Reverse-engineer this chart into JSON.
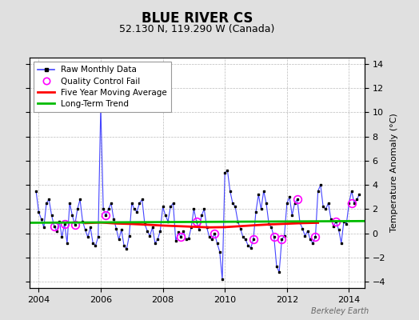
{
  "title": "BLUE RIVER CS",
  "subtitle": "52.130 N, 119.290 W (Canada)",
  "ylabel": "Temperature Anomaly (°C)",
  "watermark": "Berkeley Earth",
  "ylim": [
    -4.5,
    14.5
  ],
  "yticks": [
    -4,
    -2,
    0,
    2,
    4,
    6,
    8,
    10,
    12,
    14
  ],
  "xlim": [
    2003.7,
    2014.5
  ],
  "xticks": [
    2004,
    2006,
    2008,
    2010,
    2012,
    2014
  ],
  "bg_color": "#e0e0e0",
  "plot_bg_color": "#ffffff",
  "raw_x": [
    2003.917,
    2004.0,
    2004.083,
    2004.167,
    2004.25,
    2004.333,
    2004.417,
    2004.5,
    2004.583,
    2004.667,
    2004.75,
    2004.833,
    2004.917,
    2005.0,
    2005.083,
    2005.167,
    2005.25,
    2005.333,
    2005.417,
    2005.5,
    2005.583,
    2005.667,
    2005.75,
    2005.833,
    2005.917,
    2006.0,
    2006.083,
    2006.167,
    2006.25,
    2006.333,
    2006.417,
    2006.5,
    2006.583,
    2006.667,
    2006.75,
    2006.833,
    2006.917,
    2007.0,
    2007.083,
    2007.167,
    2007.25,
    2007.333,
    2007.417,
    2007.5,
    2007.583,
    2007.667,
    2007.75,
    2007.833,
    2007.917,
    2008.0,
    2008.083,
    2008.167,
    2008.25,
    2008.333,
    2008.417,
    2008.5,
    2008.583,
    2008.667,
    2008.75,
    2008.833,
    2008.917,
    2009.0,
    2009.083,
    2009.167,
    2009.25,
    2009.333,
    2009.417,
    2009.5,
    2009.583,
    2009.667,
    2009.75,
    2009.833,
    2009.917,
    2010.0,
    2010.083,
    2010.167,
    2010.25,
    2010.333,
    2010.417,
    2010.5,
    2010.583,
    2010.667,
    2010.75,
    2010.833,
    2010.917,
    2011.0,
    2011.083,
    2011.167,
    2011.25,
    2011.333,
    2011.417,
    2011.5,
    2011.583,
    2011.667,
    2011.75,
    2011.833,
    2011.917,
    2012.0,
    2012.083,
    2012.167,
    2012.25,
    2012.333,
    2012.417,
    2012.5,
    2012.583,
    2012.667,
    2012.75,
    2012.833,
    2012.917,
    2013.0,
    2013.083,
    2013.167,
    2013.25,
    2013.333,
    2013.417,
    2013.5,
    2013.583,
    2013.667,
    2013.75,
    2013.833,
    2013.917,
    2014.0,
    2014.083,
    2014.167,
    2014.25,
    2014.333
  ],
  "raw_y": [
    3.5,
    1.8,
    1.2,
    0.5,
    2.5,
    2.8,
    1.5,
    0.6,
    0.2,
    1.0,
    -0.3,
    0.8,
    -0.8,
    2.5,
    1.5,
    0.7,
    2.0,
    2.8,
    1.0,
    0.3,
    -0.3,
    0.5,
    -0.8,
    -1.0,
    -0.3,
    10.5,
    2.0,
    1.5,
    2.0,
    2.5,
    1.2,
    0.4,
    -0.5,
    0.3,
    -1.0,
    -1.3,
    -0.2,
    2.5,
    2.0,
    1.8,
    2.5,
    2.8,
    0.8,
    0.2,
    -0.2,
    0.5,
    -0.8,
    -0.5,
    0.2,
    2.2,
    1.5,
    1.0,
    2.2,
    2.5,
    -0.6,
    0.1,
    -0.3,
    0.2,
    -0.5,
    -0.4,
    0.5,
    2.0,
    1.0,
    0.3,
    1.5,
    2.0,
    0.5,
    -0.3,
    -0.5,
    0.0,
    -0.8,
    -1.5,
    -3.8,
    5.0,
    5.2,
    3.5,
    2.5,
    2.2,
    1.0,
    0.4,
    -0.3,
    -0.5,
    -1.0,
    -1.2,
    -0.5,
    1.8,
    3.2,
    2.0,
    3.5,
    2.5,
    0.8,
    0.5,
    -0.3,
    -2.7,
    -3.2,
    -0.5,
    -0.2,
    2.5,
    3.0,
    1.5,
    2.5,
    2.8,
    0.9,
    0.4,
    -0.2,
    0.2,
    -0.5,
    -0.8,
    -0.3,
    3.5,
    4.0,
    2.2,
    2.0,
    2.5,
    1.2,
    0.6,
    1.0,
    0.3,
    -0.8,
    1.0,
    0.8,
    2.5,
    3.5,
    2.5,
    2.8,
    3.2
  ],
  "qc_fail_x": [
    2004.5,
    2004.833,
    2005.167,
    2006.167,
    2008.583,
    2009.083,
    2009.667,
    2010.917,
    2011.583,
    2011.833,
    2012.333,
    2012.917,
    2013.583,
    2014.083
  ],
  "qc_fail_y": [
    0.6,
    0.8,
    0.7,
    1.5,
    -0.3,
    1.0,
    0.0,
    -0.5,
    -0.3,
    -0.5,
    2.8,
    -0.3,
    1.0,
    2.5
  ],
  "moving_avg_x": [
    2005.5,
    2006.0,
    2006.5,
    2007.0,
    2007.5,
    2008.0,
    2008.5,
    2009.0,
    2009.5,
    2010.0,
    2010.5,
    2011.0,
    2011.5,
    2012.0,
    2012.5,
    2013.0
  ],
  "moving_avg_y": [
    0.85,
    0.9,
    0.82,
    0.78,
    0.72,
    0.65,
    0.6,
    0.55,
    0.5,
    0.52,
    0.6,
    0.68,
    0.75,
    0.8,
    0.85,
    0.88
  ],
  "trend_x": [
    2003.7,
    2014.5
  ],
  "trend_y": [
    0.88,
    1.02
  ],
  "line_color": "#4444ff",
  "marker_color": "#000000",
  "qc_color": "#ff00ff",
  "moving_avg_color": "#ff0000",
  "trend_color": "#00bb00",
  "title_fontsize": 12,
  "subtitle_fontsize": 9,
  "tick_fontsize": 8,
  "legend_fontsize": 7.5
}
